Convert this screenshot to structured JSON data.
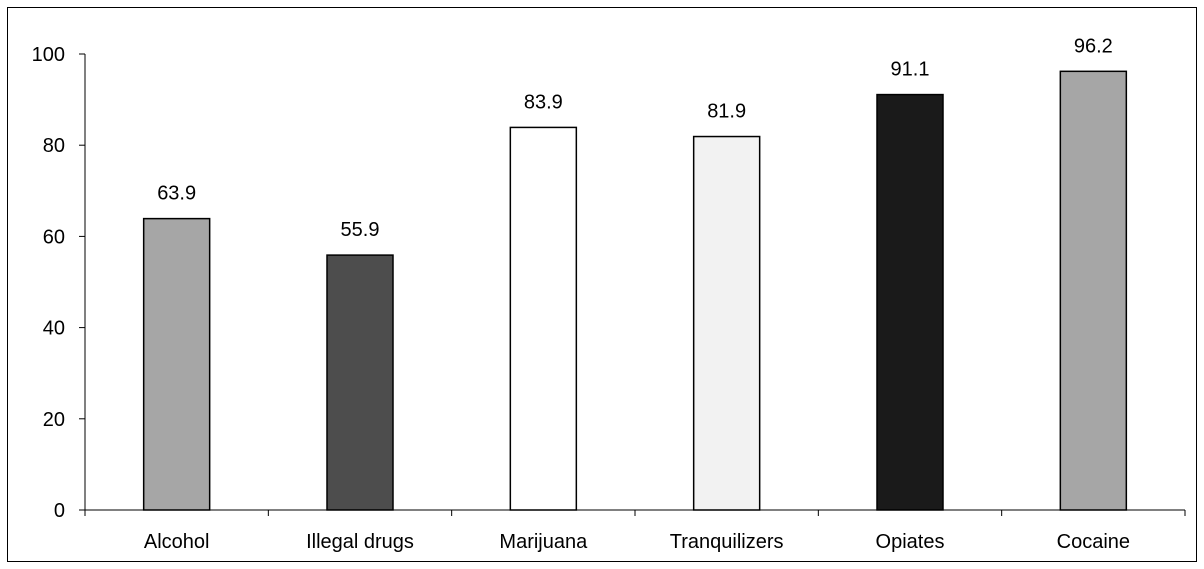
{
  "chart_data": {
    "type": "bar",
    "categories": [
      "Alcohol",
      "Illegal drugs",
      "Marijuana",
      "Tranquilizers",
      "Opiates",
      "Cocaine"
    ],
    "values": [
      63.9,
      55.9,
      83.9,
      81.9,
      91.1,
      96.2
    ],
    "value_labels": [
      "63.9",
      "55.9",
      "83.9",
      "81.9",
      "91.1",
      "96.2"
    ],
    "bar_colors": [
      "#a6a6a6",
      "#4d4d4d",
      "#ffffff",
      "#f2f2f2",
      "#1a1a1a",
      "#a6a6a6"
    ],
    "ylim": [
      0,
      100
    ],
    "yticks": [
      0,
      20,
      40,
      60,
      80,
      100
    ],
    "ytick_labels": [
      "0",
      "20",
      "40",
      "60",
      "80",
      "100"
    ],
    "title": "",
    "xlabel": "",
    "ylabel": "",
    "grid": false,
    "legend": "none"
  }
}
